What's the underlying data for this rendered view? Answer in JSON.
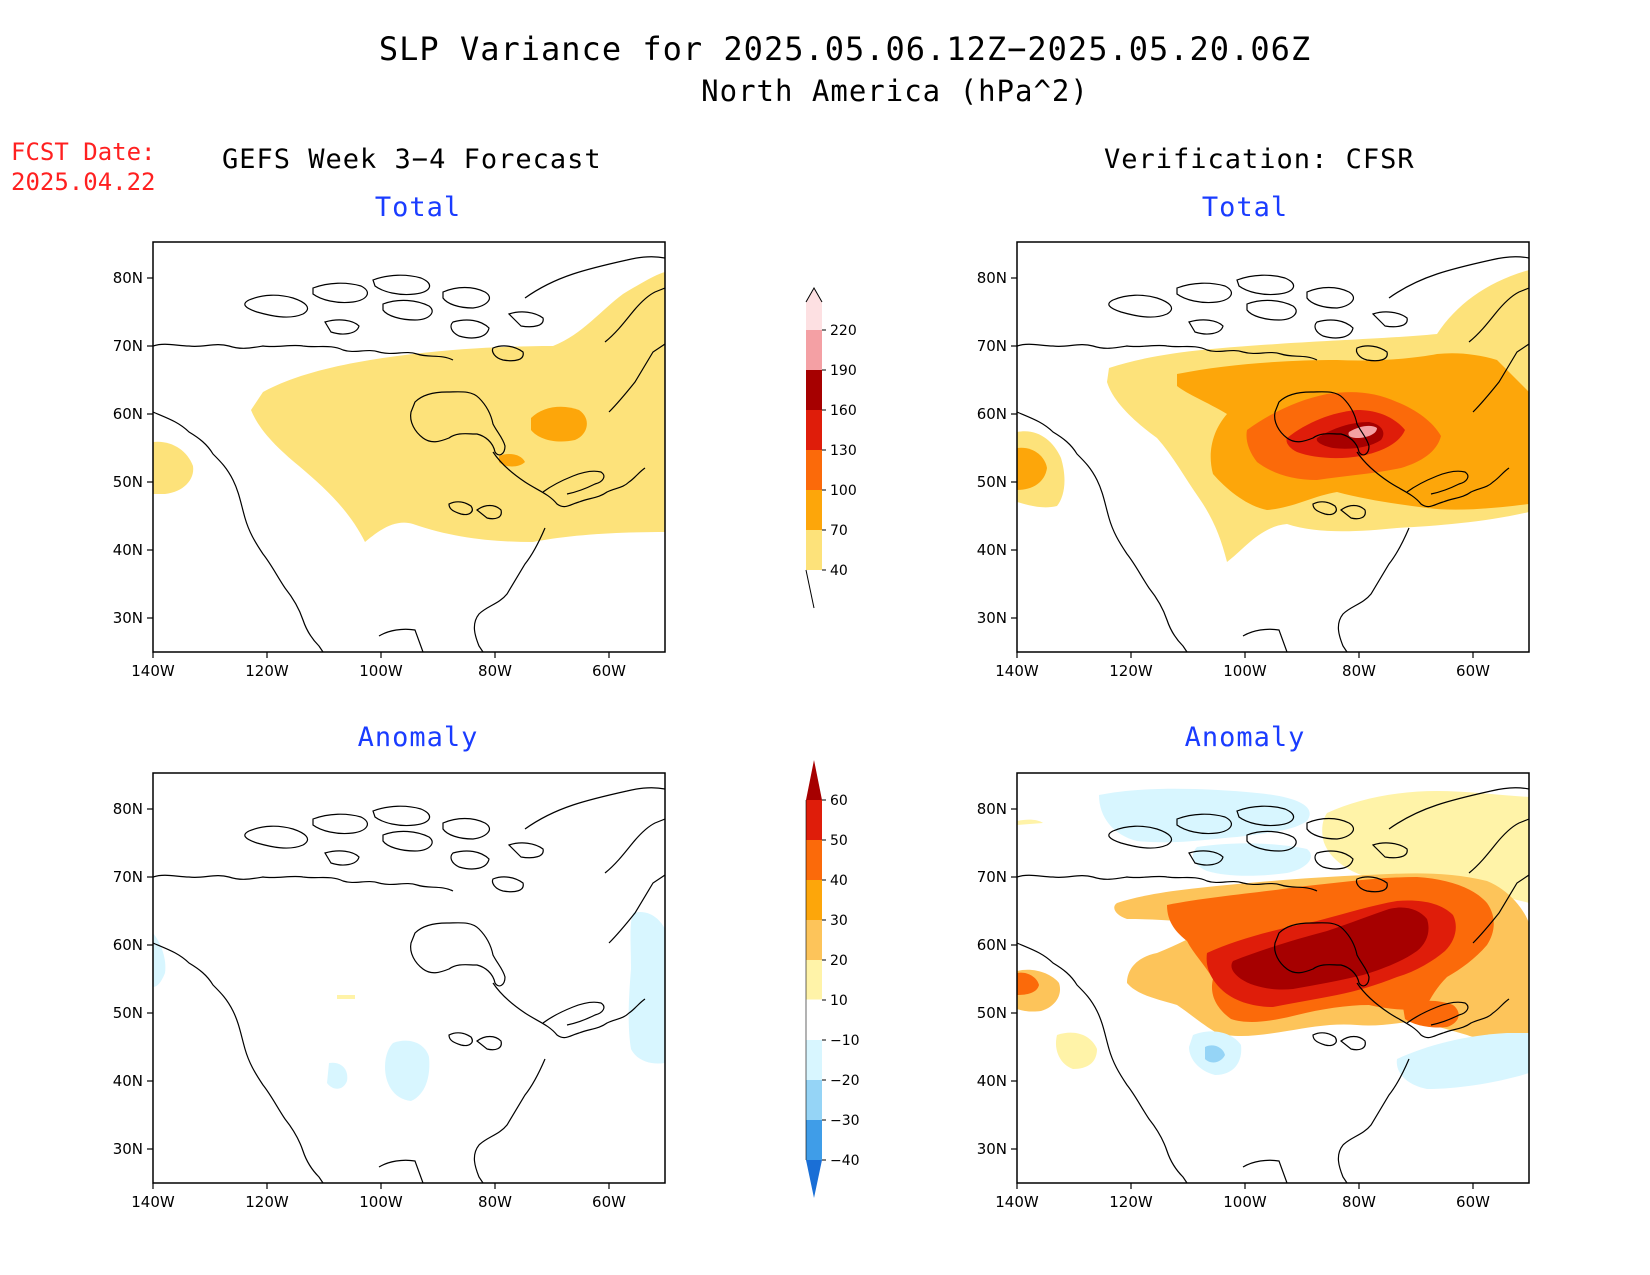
{
  "title": {
    "line1": "SLP Variance for 2025.05.06.12Z−2025.05.20.06Z",
    "line2": "North America (hPa^2)"
  },
  "forecast_date": {
    "label": "FCST Date:",
    "value": "2025.04.22"
  },
  "columns": {
    "left": "GEFS Week 3−4 Forecast",
    "right": "Verification: CFSR"
  },
  "rows": {
    "top": "Total",
    "bottom": "Anomaly"
  },
  "axes": {
    "lon_labels": [
      "140W",
      "120W",
      "100W",
      "80W",
      "60W"
    ],
    "lat_labels": [
      "80N",
      "70N",
      "60N",
      "50N",
      "40N",
      "30N"
    ]
  },
  "colorbars": {
    "total": {
      "levels": [
        "40",
        "70",
        "100",
        "130",
        "160",
        "190",
        "220"
      ],
      "colors": [
        "#fde27a",
        "#fda60a",
        "#fb6a0a",
        "#df1d0a",
        "#a60000",
        "#f4a0a4",
        "#fde0e2"
      ]
    },
    "anomaly": {
      "levels": [
        "60",
        "50",
        "40",
        "30",
        "20",
        "10",
        "−10",
        "−20",
        "−30",
        "−40"
      ],
      "colors": [
        "#a60000",
        "#df1d0a",
        "#fb6a0a",
        "#fda60a",
        "#fdc45a",
        "#fff3a8",
        "#ffffff",
        "#d8f6ff",
        "#95d4f6",
        "#3f9de8",
        "#1a6fd6"
      ]
    }
  },
  "colors": {
    "title_subplot": "#1a3cff",
    "fcst_date": "#ff2020"
  }
}
